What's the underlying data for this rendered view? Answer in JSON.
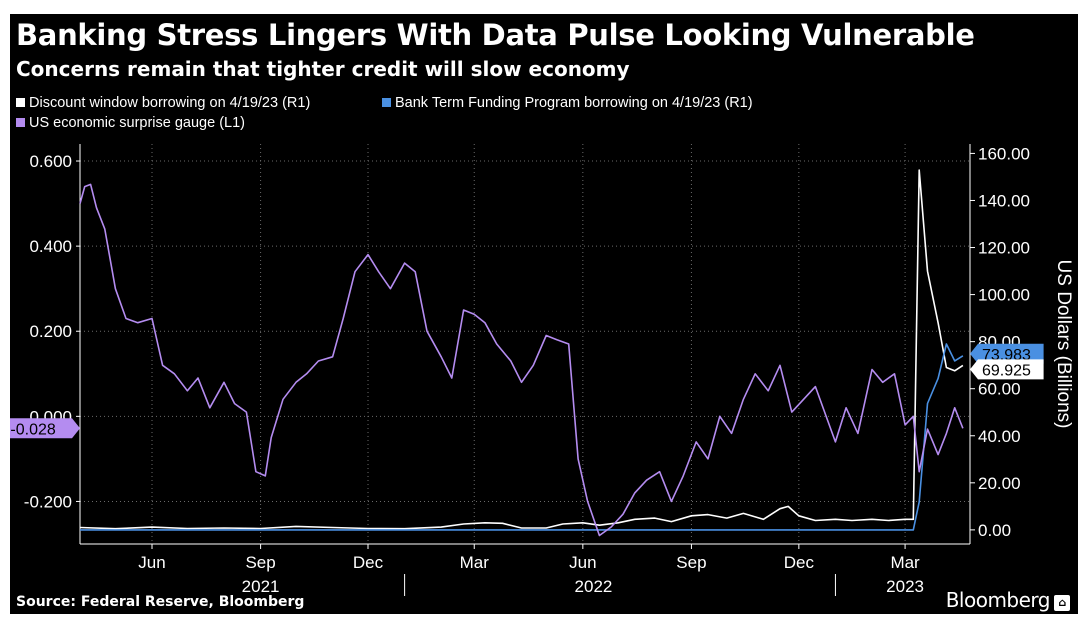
{
  "chart_data": {
    "type": "line",
    "title": "Banking Stress Lingers With Data Pulse Looking Vulnerable",
    "subtitle": "Concerns remain that tighter credit will slow economy",
    "source": "Source: Federal Reserve, Bloomberg",
    "brand": "Bloomberg",
    "right_axis_label": "US Dollars (Billions)",
    "left_axis": {
      "range": [
        -0.3,
        0.64
      ],
      "ticks": [
        0.6,
        0.4,
        0.2,
        0.0,
        -0.2
      ],
      "tick_labels": [
        "0.600",
        "0.400",
        "0.200",
        "0.000",
        "-0.200"
      ]
    },
    "right_axis": {
      "range": [
        -6,
        164
      ],
      "ticks": [
        160,
        140,
        120,
        100,
        80,
        60,
        40,
        20,
        0
      ],
      "tick_labels": [
        "160.00",
        "140.00",
        "120.00",
        "100.00",
        "80.00",
        "60.00",
        "40.00",
        "20.00",
        "0.00"
      ]
    },
    "x_range": [
      "2021-04-01",
      "2023-04-25"
    ],
    "month_ticks": [
      {
        "date": "2021-06-01",
        "label": "Jun"
      },
      {
        "date": "2021-09-01",
        "label": "Sep"
      },
      {
        "date": "2021-12-01",
        "label": "Dec"
      },
      {
        "date": "2022-03-01",
        "label": "Mar"
      },
      {
        "date": "2022-06-01",
        "label": "Jun"
      },
      {
        "date": "2022-09-01",
        "label": "Sep"
      },
      {
        "date": "2022-12-01",
        "label": "Dec"
      },
      {
        "date": "2023-03-01",
        "label": "Mar"
      }
    ],
    "year_labels": [
      {
        "date": "2021-09-01",
        "label": "2021"
      },
      {
        "date": "2022-06-10",
        "label": "2022"
      },
      {
        "date": "2023-03-01",
        "label": "2023"
      }
    ],
    "year_dividers": [
      "2022-01-01",
      "2023-01-01"
    ],
    "grid": true,
    "series": [
      {
        "name": "Discount window borrowing on 4/19/23 (R1)",
        "axis": "right",
        "color": "#ffffff",
        "end_label": "69.925",
        "points": [
          [
            "2021-04-01",
            1
          ],
          [
            "2021-05-01",
            0.5
          ],
          [
            "2021-06-01",
            1.2
          ],
          [
            "2021-07-01",
            0.6
          ],
          [
            "2021-08-01",
            0.8
          ],
          [
            "2021-09-01",
            0.6
          ],
          [
            "2021-10-01",
            1.5
          ],
          [
            "2021-11-01",
            1
          ],
          [
            "2021-12-01",
            0.6
          ],
          [
            "2022-01-01",
            0.5
          ],
          [
            "2022-02-01",
            1.2
          ],
          [
            "2022-02-20",
            2.5
          ],
          [
            "2022-03-10",
            3
          ],
          [
            "2022-03-25",
            2.8
          ],
          [
            "2022-04-10",
            0.8
          ],
          [
            "2022-05-01",
            0.8
          ],
          [
            "2022-05-15",
            2.5
          ],
          [
            "2022-06-01",
            3
          ],
          [
            "2022-06-15",
            2
          ],
          [
            "2022-07-01",
            3
          ],
          [
            "2022-07-15",
            4.5
          ],
          [
            "2022-08-01",
            5
          ],
          [
            "2022-08-15",
            3.5
          ],
          [
            "2022-09-01",
            6
          ],
          [
            "2022-09-15",
            6.5
          ],
          [
            "2022-10-01",
            5
          ],
          [
            "2022-10-15",
            7
          ],
          [
            "2022-11-01",
            4.5
          ],
          [
            "2022-11-15",
            9
          ],
          [
            "2022-11-22",
            10
          ],
          [
            "2022-12-01",
            6
          ],
          [
            "2022-12-15",
            4
          ],
          [
            "2023-01-01",
            4.5
          ],
          [
            "2023-01-15",
            4
          ],
          [
            "2023-02-01",
            4.5
          ],
          [
            "2023-02-15",
            4
          ],
          [
            "2023-03-01",
            4.5
          ],
          [
            "2023-03-08",
            4.5
          ],
          [
            "2023-03-13",
            152.9
          ],
          [
            "2023-03-20",
            110
          ],
          [
            "2023-03-29",
            88
          ],
          [
            "2023-04-05",
            69
          ],
          [
            "2023-04-12",
            67.6
          ],
          [
            "2023-04-19",
            69.9
          ]
        ]
      },
      {
        "name": "Bank Term Funding Program borrowing on 4/19/23 (R1)",
        "axis": "right",
        "color": "#4a90e2",
        "end_label": "73.983",
        "points": [
          [
            "2021-04-01",
            0
          ],
          [
            "2023-03-08",
            0
          ],
          [
            "2023-03-13",
            11.9
          ],
          [
            "2023-03-20",
            53.7
          ],
          [
            "2023-03-29",
            64.4
          ],
          [
            "2023-04-05",
            79
          ],
          [
            "2023-04-12",
            71.8
          ],
          [
            "2023-04-19",
            74
          ]
        ]
      },
      {
        "name": "US economic surprise gauge (L1)",
        "axis": "left",
        "color": "#b48cf0",
        "end_label": "-0.028",
        "points": [
          [
            "2021-04-01",
            0.5
          ],
          [
            "2021-04-05",
            0.54
          ],
          [
            "2021-04-10",
            0.545
          ],
          [
            "2021-04-15",
            0.49
          ],
          [
            "2021-04-22",
            0.44
          ],
          [
            "2021-05-01",
            0.3
          ],
          [
            "2021-05-10",
            0.23
          ],
          [
            "2021-05-20",
            0.22
          ],
          [
            "2021-06-01",
            0.23
          ],
          [
            "2021-06-10",
            0.12
          ],
          [
            "2021-06-20",
            0.1
          ],
          [
            "2021-07-01",
            0.06
          ],
          [
            "2021-07-10",
            0.09
          ],
          [
            "2021-07-20",
            0.02
          ],
          [
            "2021-08-01",
            0.08
          ],
          [
            "2021-08-10",
            0.03
          ],
          [
            "2021-08-20",
            0.01
          ],
          [
            "2021-08-28",
            -0.13
          ],
          [
            "2021-09-05",
            -0.14
          ],
          [
            "2021-09-10",
            -0.05
          ],
          [
            "2021-09-20",
            0.04
          ],
          [
            "2021-10-01",
            0.08
          ],
          [
            "2021-10-10",
            0.1
          ],
          [
            "2021-10-20",
            0.13
          ],
          [
            "2021-11-01",
            0.14
          ],
          [
            "2021-11-10",
            0.23
          ],
          [
            "2021-11-20",
            0.34
          ],
          [
            "2021-12-01",
            0.38
          ],
          [
            "2021-12-10",
            0.34
          ],
          [
            "2021-12-20",
            0.3
          ],
          [
            "2022-01-01",
            0.36
          ],
          [
            "2022-01-10",
            0.34
          ],
          [
            "2022-01-20",
            0.2
          ],
          [
            "2022-02-01",
            0.14
          ],
          [
            "2022-02-10",
            0.09
          ],
          [
            "2022-02-20",
            0.25
          ],
          [
            "2022-03-01",
            0.24
          ],
          [
            "2022-03-10",
            0.22
          ],
          [
            "2022-03-20",
            0.17
          ],
          [
            "2022-04-01",
            0.13
          ],
          [
            "2022-04-10",
            0.08
          ],
          [
            "2022-04-20",
            0.12
          ],
          [
            "2022-05-01",
            0.19
          ],
          [
            "2022-05-10",
            0.18
          ],
          [
            "2022-05-20",
            0.17
          ],
          [
            "2022-05-28",
            -0.1
          ],
          [
            "2022-06-05",
            -0.2
          ],
          [
            "2022-06-15",
            -0.28
          ],
          [
            "2022-06-25",
            -0.26
          ],
          [
            "2022-07-05",
            -0.23
          ],
          [
            "2022-07-15",
            -0.18
          ],
          [
            "2022-07-25",
            -0.15
          ],
          [
            "2022-08-05",
            -0.13
          ],
          [
            "2022-08-15",
            -0.2
          ],
          [
            "2022-08-25",
            -0.14
          ],
          [
            "2022-09-05",
            -0.06
          ],
          [
            "2022-09-15",
            -0.1
          ],
          [
            "2022-09-25",
            0
          ],
          [
            "2022-10-05",
            -0.04
          ],
          [
            "2022-10-15",
            0.04
          ],
          [
            "2022-10-25",
            0.1
          ],
          [
            "2022-11-05",
            0.06
          ],
          [
            "2022-11-15",
            0.12
          ],
          [
            "2022-11-25",
            0.01
          ],
          [
            "2022-12-05",
            0.04
          ],
          [
            "2022-12-15",
            0.07
          ],
          [
            "2023-01-01",
            -0.06
          ],
          [
            "2023-01-10",
            0.02
          ],
          [
            "2023-01-20",
            -0.04
          ],
          [
            "2023-02-01",
            0.11
          ],
          [
            "2023-02-10",
            0.08
          ],
          [
            "2023-02-20",
            0.1
          ],
          [
            "2023-03-01",
            -0.02
          ],
          [
            "2023-03-08",
            0
          ],
          [
            "2023-03-13",
            -0.13
          ],
          [
            "2023-03-20",
            -0.03
          ],
          [
            "2023-03-29",
            -0.09
          ],
          [
            "2023-04-05",
            -0.04
          ],
          [
            "2023-04-12",
            0.02
          ],
          [
            "2023-04-19",
            -0.028
          ]
        ]
      }
    ]
  }
}
